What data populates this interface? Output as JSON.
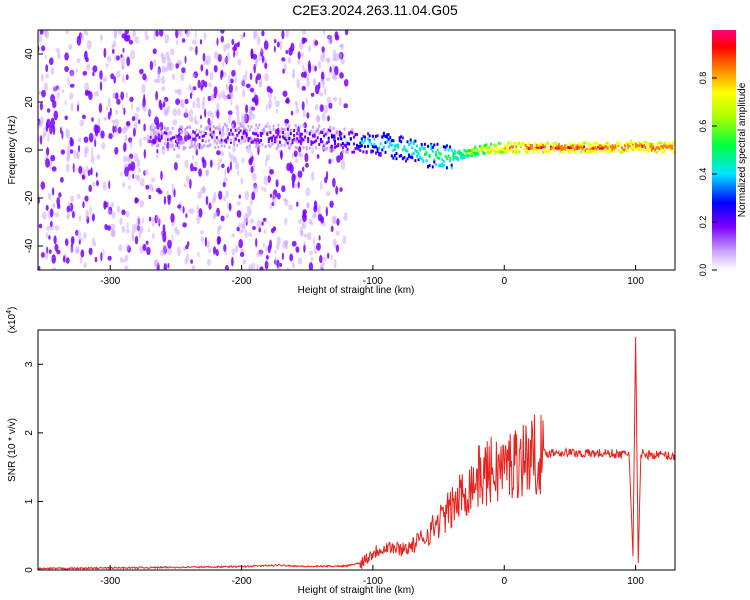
{
  "title": "C2E3.2024.263.11.04.G05",
  "colors": {
    "trace": "#e8231e",
    "ridge": "#e8231e",
    "scatter": "#7a00ff",
    "axis": "#000000"
  },
  "chart_data": [
    {
      "type": "heatmap",
      "xlabel": "Height of straight line (km)",
      "ylabel": "Frequency (Hz)",
      "xlim": [
        -355,
        130
      ],
      "ylim": [
        -50,
        50
      ],
      "xticks": [
        -300,
        -200,
        -100,
        0,
        100
      ],
      "yticks": [
        -40,
        -20,
        0,
        20,
        40
      ],
      "colorbar": {
        "label": "Normalized spectral amplitude",
        "range": [
          0,
          1
        ],
        "ticks": [
          0.0,
          0.2,
          0.4,
          0.6,
          0.8
        ],
        "tick_labels": [
          "0.0",
          "0.2",
          "0.4",
          "0.6",
          "0.8"
        ],
        "colormap": [
          "#ffffff",
          "#c9a0ff",
          "#7a00ff",
          "#0000ff",
          "#00e5ff",
          "#00ff40",
          "#b0ff00",
          "#ffff00",
          "#ff8000",
          "#ff0000",
          "#ff0080"
        ]
      },
      "ridge": {
        "x": [
          -260,
          -200,
          -140,
          -100,
          -80,
          -60,
          -45,
          -35,
          -20,
          0,
          20,
          60,
          90,
          100,
          110,
          130
        ],
        "y": [
          5,
          6,
          5,
          3,
          1,
          -2,
          -3,
          -2,
          0,
          1,
          1,
          1,
          1,
          2,
          1,
          1
        ],
        "amplitude": [
          0.25,
          0.28,
          0.3,
          0.45,
          0.5,
          0.55,
          0.55,
          0.6,
          0.7,
          0.85,
          0.9,
          0.9,
          0.9,
          0.85,
          0.9,
          0.9
        ]
      }
    },
    {
      "type": "line",
      "xlabel": "Height of straight line (km)",
      "ylabel": "SNR (10 * v/v)",
      "scale_label": "(x10",
      "scale_exponent": "4",
      "xlim": [
        -355,
        130
      ],
      "ylim": [
        0,
        3.5
      ],
      "xticks": [
        -300,
        -200,
        -100,
        0,
        100
      ],
      "yticks": [
        0,
        1,
        2,
        3
      ],
      "series": [
        {
          "x": [
            -355,
            -300,
            -250,
            -200,
            -170,
            -150,
            -120,
            -110,
            -100,
            -90,
            -80,
            -70,
            -60,
            -50,
            -40,
            -30,
            -20,
            -10,
            0,
            10,
            20,
            30,
            40,
            60,
            80,
            90,
            95,
            98,
            100,
            102,
            104,
            110,
            120,
            130
          ],
          "y": [
            0.02,
            0.03,
            0.04,
            0.05,
            0.07,
            0.05,
            0.06,
            0.1,
            0.25,
            0.35,
            0.3,
            0.35,
            0.5,
            0.7,
            0.9,
            1.15,
            1.35,
            1.45,
            1.5,
            1.6,
            1.68,
            1.7,
            1.72,
            1.7,
            1.7,
            1.68,
            1.72,
            0.2,
            3.4,
            0.1,
            1.7,
            1.68,
            1.68,
            1.65
          ]
        }
      ]
    }
  ]
}
